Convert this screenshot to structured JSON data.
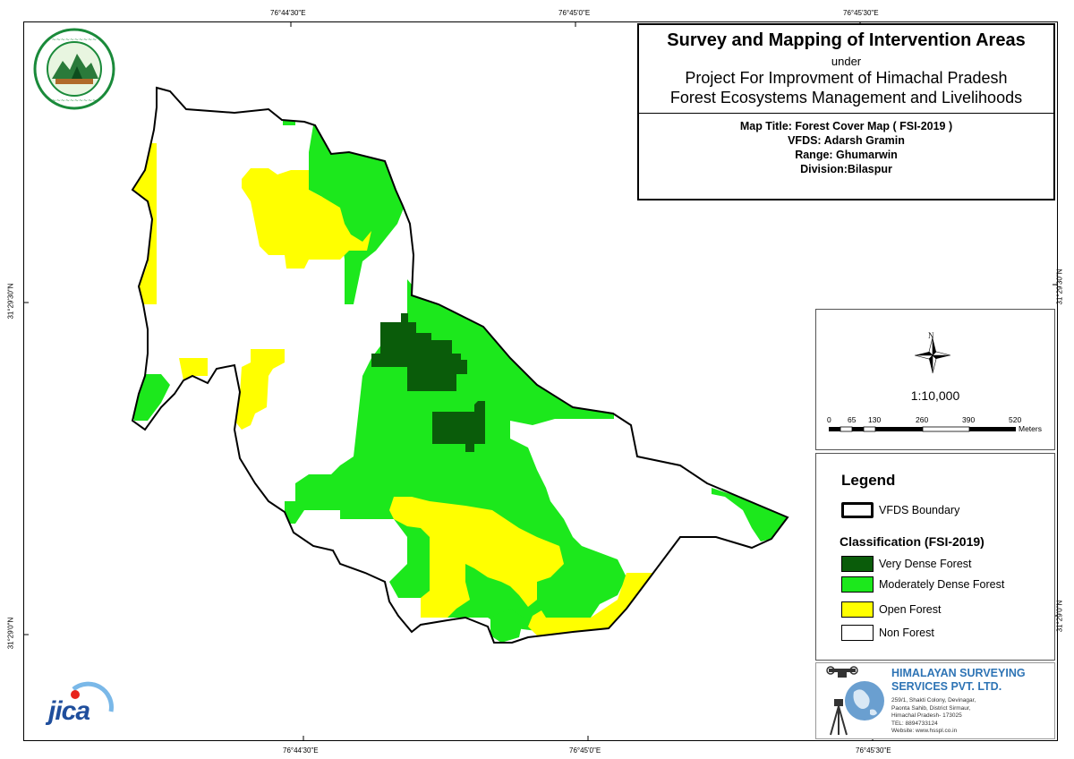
{
  "title": {
    "main": "Survey and Mapping of Intervention Areas",
    "under": "under",
    "project_line1": "Project For Improvment of Himachal Pradesh",
    "project_line2": "Forest Ecosystems Management and Livelihoods"
  },
  "map_info": {
    "map_title": "Map Title:  Forest Cover Map ( FSI-2019 )",
    "vfds": "VFDS: Adarsh Gramin",
    "range": "Range: Ghumarwin",
    "division": "Division:Bilaspur"
  },
  "graticule": {
    "top": [
      "76°44'30\"E",
      "76°45'0\"E",
      "76°45'30\"E"
    ],
    "bottom": [
      "76°44'30\"E",
      "76°45'0\"E",
      "76°45'30\"E"
    ],
    "left": [
      "31°29'30\"N",
      "31°29'0\"N"
    ],
    "right": [
      "31°29'30\"N",
      "31°29'0\"N"
    ]
  },
  "north": {
    "letter": "N"
  },
  "scale": {
    "ratio": "1:10,000",
    "labels": [
      "0",
      "65",
      "130",
      "260",
      "390",
      "520"
    ],
    "unit": "Meters"
  },
  "legend": {
    "title": "Legend",
    "boundary_label": "VFDS Boundary",
    "classification_title": "Classification (FSI-2019)",
    "classes": [
      {
        "label": "Very Dense Forest",
        "color": "#0a5c0a"
      },
      {
        "label": "Moderately Dense Forest",
        "color": "#1ce81c"
      },
      {
        "label": "Open Forest",
        "color": "#ffff00"
      },
      {
        "label": "Non Forest",
        "color": "#ffffff"
      }
    ]
  },
  "company": {
    "name_line1": "HIMALAYAN SURVEYING",
    "name_line2": "SERVICES PVT. LTD.",
    "address": [
      "259/1, Shakti Colony, Devinagar,",
      "Paonta Sahib, District Sirmaur,",
      "Himachal Pradesh- 173025",
      "TEL: 8894733124",
      "Website: www.hsspl.co.in"
    ]
  },
  "logos": {
    "jica": "JICA",
    "hp_forest_icon": "hp-forest-department-seal"
  }
}
